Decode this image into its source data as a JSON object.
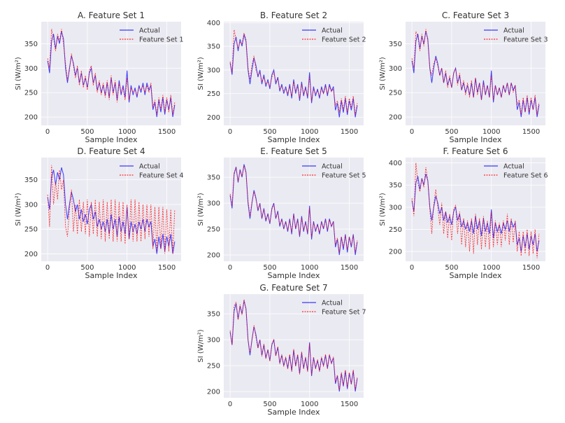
{
  "chart_data": {
    "type": "line",
    "layout": "7 subplots in a 3-column grid",
    "xlabel": "Sample Index",
    "ylabel": "SI (W/m²)",
    "x_ticks": [
      0,
      500,
      1000,
      1500
    ],
    "xlim": [
      -80,
      1680
    ],
    "x_step": 25,
    "grid": true,
    "legend_position": "top-right",
    "colors": {
      "actual": "#0000ff",
      "predicted": "#ff0000",
      "plot_bg": "#eaeaf2",
      "grid": "#ffffff"
    },
    "actual": {
      "name": "Actual",
      "values": [
        315,
        290,
        355,
        370,
        340,
        365,
        350,
        375,
        360,
        300,
        270,
        300,
        325,
        310,
        285,
        300,
        270,
        290,
        265,
        280,
        260,
        290,
        300,
        270,
        285,
        255,
        270,
        250,
        265,
        245,
        270,
        240,
        280,
        250,
        270,
        235,
        275,
        245,
        265,
        240,
        295,
        230,
        265,
        245,
        260,
        240,
        265,
        250,
        270,
        245,
        270,
        255,
        265,
        215,
        230,
        200,
        235,
        210,
        240,
        205,
        235,
        215,
        240,
        200,
        225
      ]
    },
    "subplots": [
      {
        "title": "A. Feature Set 1",
        "series_name": "Feature Set 1",
        "ylim": [
          183,
          395
        ],
        "y_ticks": [
          200,
          250,
          300,
          350
        ],
        "values": [
          320,
          300,
          380,
          360,
          335,
          370,
          355,
          380,
          350,
          310,
          275,
          295,
          330,
          305,
          280,
          305,
          265,
          295,
          260,
          285,
          255,
          295,
          305,
          265,
          290,
          250,
          275,
          245,
          270,
          240,
          275,
          235,
          285,
          245,
          275,
          230,
          270,
          250,
          260,
          235,
          280,
          235,
          260,
          250,
          255,
          245,
          260,
          255,
          265,
          250,
          265,
          250,
          270,
          220,
          235,
          205,
          240,
          215,
          245,
          210,
          240,
          210,
          245,
          205,
          230
        ]
      },
      {
        "title": "B. Feature Set 2",
        "series_name": "Feature Set 2",
        "ylim": [
          183,
          402
        ],
        "y_ticks": [
          200,
          250,
          300,
          350,
          400
        ],
        "values": [
          318,
          295,
          385,
          365,
          345,
          360,
          355,
          378,
          365,
          305,
          280,
          310,
          330,
          300,
          290,
          295,
          275,
          285,
          270,
          275,
          265,
          285,
          295,
          275,
          280,
          260,
          265,
          255,
          260,
          250,
          265,
          245,
          275,
          255,
          265,
          240,
          270,
          250,
          260,
          245,
          285,
          235,
          260,
          250,
          255,
          245,
          260,
          250,
          265,
          250,
          265,
          255,
          260,
          225,
          235,
          210,
          240,
          215,
          245,
          210,
          240,
          220,
          245,
          205,
          230
        ]
      },
      {
        "title": "C. Feature Set 3",
        "series_name": "Feature Set 3",
        "ylim": [
          183,
          395
        ],
        "y_ticks": [
          200,
          250,
          300,
          350
        ],
        "values": [
          320,
          300,
          375,
          365,
          335,
          370,
          345,
          380,
          355,
          300,
          285,
          310,
          320,
          305,
          285,
          300,
          270,
          295,
          260,
          285,
          260,
          290,
          300,
          265,
          290,
          255,
          275,
          245,
          270,
          240,
          275,
          240,
          280,
          245,
          270,
          235,
          270,
          245,
          265,
          240,
          285,
          235,
          265,
          245,
          260,
          240,
          265,
          250,
          270,
          245,
          270,
          250,
          265,
          225,
          235,
          205,
          240,
          210,
          245,
          210,
          240,
          215,
          245,
          205,
          230
        ]
      },
      {
        "title": "D. Feature Set 4",
        "series_name": "Feature Set 4",
        "ylim": [
          185,
          395
        ],
        "y_ticks": [
          200,
          250,
          300,
          350
        ],
        "values": [
          320,
          255,
          380,
          300,
          345,
          310,
          370,
          330,
          350,
          255,
          235,
          290,
          330,
          245,
          300,
          240,
          310,
          245,
          305,
          240,
          310,
          235,
          305,
          240,
          310,
          235,
          305,
          230,
          310,
          225,
          305,
          230,
          310,
          225,
          310,
          225,
          305,
          225,
          305,
          220,
          300,
          230,
          310,
          225,
          310,
          225,
          305,
          225,
          300,
          230,
          300,
          235,
          300,
          210,
          295,
          205,
          295,
          210,
          295,
          200,
          290,
          205,
          290,
          200,
          290
        ]
      },
      {
        "title": "E. Feature Set 5",
        "series_name": "Feature Set 5",
        "ylim": [
          188,
          388
        ],
        "y_ticks": [
          200,
          250,
          300,
          350
        ],
        "values": [
          318,
          295,
          360,
          368,
          342,
          362,
          352,
          372,
          358,
          305,
          275,
          302,
          322,
          308,
          288,
          298,
          272,
          288,
          268,
          278,
          262,
          288,
          298,
          272,
          283,
          258,
          268,
          252,
          263,
          248,
          268,
          243,
          278,
          252,
          268,
          238,
          272,
          248,
          263,
          243,
          290,
          235,
          263,
          248,
          258,
          243,
          263,
          252,
          268,
          248,
          268,
          255,
          263,
          220,
          233,
          205,
          235,
          215,
          238,
          210,
          235,
          218,
          238,
          205,
          228
        ]
      },
      {
        "title": "F. Feature Set 6",
        "series_name": "Feature Set 6",
        "ylim": [
          178,
          412
        ],
        "y_ticks": [
          200,
          250,
          300,
          350,
          400
        ],
        "values": [
          320,
          280,
          400,
          355,
          335,
          365,
          345,
          390,
          360,
          295,
          240,
          305,
          340,
          300,
          260,
          310,
          240,
          290,
          230,
          285,
          225,
          295,
          305,
          240,
          290,
          215,
          275,
          210,
          270,
          200,
          275,
          195,
          285,
          215,
          275,
          205,
          280,
          210,
          270,
          205,
          290,
          210,
          270,
          215,
          265,
          210,
          270,
          225,
          285,
          215,
          275,
          220,
          270,
          200,
          245,
          190,
          245,
          195,
          250,
          190,
          245,
          195,
          250,
          185,
          240
        ]
      },
      {
        "title": "G. Feature Set 7",
        "series_name": "Feature Set 7",
        "ylim": [
          188,
          388
        ],
        "y_ticks": [
          200,
          250,
          300,
          350
        ],
        "values": [
          318,
          290,
          365,
          372,
          338,
          368,
          348,
          378,
          358,
          300,
          275,
          298,
          328,
          305,
          283,
          300,
          268,
          292,
          263,
          282,
          258,
          292,
          300,
          268,
          287,
          253,
          272,
          248,
          267,
          243,
          272,
          238,
          282,
          248,
          272,
          233,
          277,
          243,
          267,
          238,
          292,
          232,
          267,
          243,
          262,
          238,
          267,
          248,
          272,
          243,
          272,
          253,
          267,
          218,
          232,
          203,
          237,
          212,
          242,
          207,
          237,
          213,
          242,
          203,
          227
        ]
      }
    ]
  }
}
